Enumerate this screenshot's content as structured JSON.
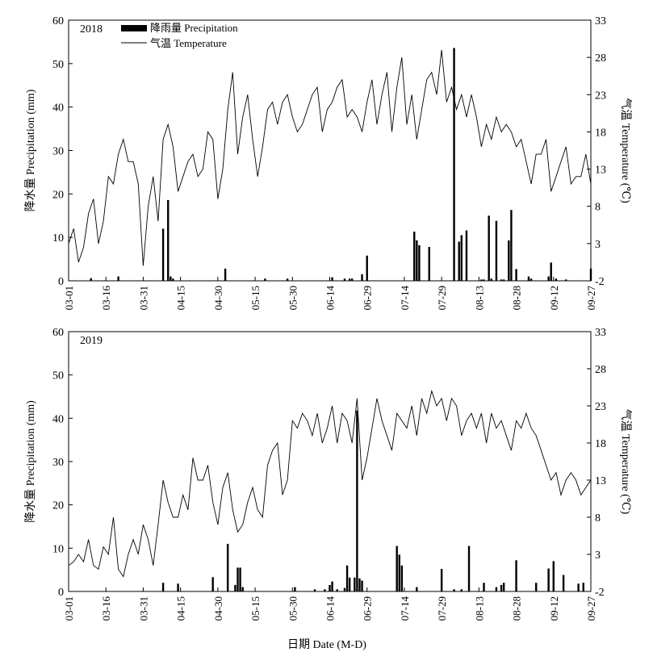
{
  "legend": {
    "precip_label": "降雨量 Precipitation",
    "temp_label": "气温 Temperature"
  },
  "shared_xlabel": "日期 Date (M-D)",
  "chart_data": [
    {
      "type": "bar+line",
      "panel_label": "2018",
      "x_tick_labels": [
        "03-01",
        "03-16",
        "03-31",
        "04-15",
        "04-30",
        "05-15",
        "05-30",
        "06-14",
        "06-29",
        "07-14",
        "07-29",
        "08-13",
        "08-28",
        "09-12",
        "09-27"
      ],
      "x_tick_days": [
        0,
        15,
        30,
        45,
        60,
        75,
        90,
        105,
        120,
        135,
        150,
        165,
        180,
        195,
        210
      ],
      "ylabel_left": "降水量 Precipitation (mm)",
      "ylabel_right": "气温 Temperature (℃)",
      "ylim_left": [
        0,
        60
      ],
      "yticks_left": [
        0,
        10,
        20,
        30,
        40,
        50,
        60
      ],
      "ylim_right": [
        -2,
        33
      ],
      "yticks_right": [
        -2,
        3,
        8,
        13,
        18,
        23,
        28,
        33
      ],
      "precipitation": {
        "name": "降雨量 Precipitation",
        "days": [
          9,
          20,
          38,
          40,
          41,
          42,
          63,
          79,
          88,
          106,
          111,
          113,
          114,
          118,
          120,
          139,
          140,
          141,
          145,
          155,
          157,
          158,
          160,
          166,
          167,
          169,
          170,
          172,
          174,
          175,
          177,
          178,
          180,
          185,
          185,
          186,
          193,
          194,
          196,
          200,
          210
        ],
        "values": [
          0.6,
          1.0,
          12.0,
          18.6,
          1.0,
          0.5,
          2.8,
          0.5,
          0.5,
          0.8,
          0.5,
          0.5,
          0.5,
          1.5,
          5.8,
          11.3,
          9.3,
          8.2,
          7.8,
          53.6,
          9.0,
          10.5,
          11.6,
          0.3,
          0.3,
          15.0,
          0.5,
          13.8,
          0.3,
          0.3,
          9.3,
          16.3,
          2.7,
          0.3,
          1.0,
          0.5,
          1.0,
          4.2,
          0.5,
          0.3,
          2.8
        ]
      },
      "temperature": {
        "name": "气温 Temperature",
        "days": [
          0,
          2,
          4,
          6,
          8,
          10,
          12,
          14,
          16,
          18,
          20,
          22,
          24,
          26,
          28,
          30,
          32,
          34,
          36,
          38,
          40,
          42,
          44,
          46,
          48,
          50,
          52,
          54,
          56,
          58,
          60,
          62,
          64,
          66,
          68,
          70,
          72,
          74,
          76,
          78,
          80,
          82,
          84,
          86,
          88,
          90,
          92,
          94,
          96,
          98,
          100,
          102,
          104,
          106,
          108,
          110,
          112,
          114,
          116,
          118,
          120,
          122,
          124,
          126,
          128,
          130,
          132,
          134,
          136,
          138,
          140,
          142,
          144,
          146,
          148,
          150,
          152,
          154,
          156,
          158,
          160,
          162,
          164,
          166,
          168,
          170,
          172,
          174,
          176,
          178,
          180,
          182,
          184,
          186,
          188,
          190,
          192,
          194,
          196,
          198,
          200,
          202,
          204,
          206,
          208,
          210
        ],
        "values": [
          3,
          5,
          0.5,
          2.5,
          7,
          9,
          3,
          6,
          12,
          11,
          15,
          17,
          14,
          14,
          11,
          0,
          8,
          12,
          6,
          17,
          19,
          16,
          10,
          12,
          14,
          15,
          12,
          13,
          18,
          17,
          9,
          13,
          21,
          26,
          15,
          20,
          23,
          17,
          12,
          16,
          21,
          22,
          19,
          22,
          23,
          20,
          18,
          19,
          21,
          23,
          24,
          18,
          21,
          22,
          24,
          25,
          20,
          21,
          20,
          18,
          22,
          25,
          19,
          23,
          26,
          18,
          24,
          28,
          19,
          23,
          17,
          21,
          25,
          26,
          23,
          29,
          22,
          24,
          21,
          23,
          20,
          23,
          20,
          16,
          19,
          17,
          20,
          18,
          19,
          18,
          16,
          17,
          14,
          11,
          15,
          15,
          17,
          10,
          12,
          14,
          16,
          11,
          12,
          12,
          15,
          11
        ]
      }
    },
    {
      "type": "bar+line",
      "panel_label": "2019",
      "x_tick_labels": [
        "03-01",
        "03-16",
        "03-31",
        "04-15",
        "04-30",
        "05-15",
        "05-30",
        "06-14",
        "06-29",
        "07-14",
        "07-29",
        "08-13",
        "08-28",
        "09-12",
        "09-27"
      ],
      "x_tick_days": [
        0,
        15,
        30,
        45,
        60,
        75,
        90,
        105,
        120,
        135,
        150,
        165,
        180,
        195,
        210
      ],
      "ylabel_left": "降水量 Precipitation (mm)",
      "ylabel_right": "气温 Temperature (℃)",
      "ylim_left": [
        0,
        60
      ],
      "yticks_left": [
        0,
        10,
        20,
        30,
        40,
        50,
        60
      ],
      "ylim_right": [
        -2,
        33
      ],
      "yticks_right": [
        -2,
        3,
        8,
        13,
        18,
        23,
        28,
        33
      ],
      "precipitation": {
        "name": "降雨量 Precipitation",
        "days": [
          38,
          44,
          58,
          64,
          67,
          68,
          69,
          70,
          91,
          99,
          103,
          105,
          106,
          108,
          111,
          112,
          113,
          115,
          116,
          117,
          118,
          132,
          133,
          134,
          140,
          150,
          155,
          158,
          161,
          167,
          172,
          174,
          175,
          180,
          188,
          193,
          195,
          199,
          205,
          207
        ],
        "values": [
          2.0,
          1.8,
          3.3,
          11.0,
          1.5,
          5.5,
          5.5,
          1.0,
          1.0,
          0.5,
          0.5,
          1.5,
          2.3,
          0.5,
          0.8,
          6.0,
          3.2,
          3.2,
          41.8,
          3.0,
          2.5,
          10.5,
          8.5,
          6.0,
          1.0,
          5.2,
          0.5,
          0.5,
          10.5,
          2.0,
          1.0,
          1.5,
          2.0,
          7.2,
          2.0,
          5.3,
          7.0,
          3.8,
          1.8,
          2.0
        ]
      },
      "temperature": {
        "name": "气温 Temperature",
        "days": [
          0,
          2,
          4,
          6,
          8,
          10,
          12,
          14,
          16,
          18,
          20,
          22,
          24,
          26,
          28,
          30,
          32,
          34,
          36,
          38,
          40,
          42,
          44,
          46,
          48,
          50,
          52,
          54,
          56,
          58,
          60,
          62,
          64,
          66,
          68,
          70,
          72,
          74,
          76,
          78,
          80,
          82,
          84,
          86,
          88,
          90,
          92,
          94,
          96,
          98,
          100,
          102,
          104,
          106,
          108,
          110,
          112,
          114,
          116,
          118,
          120,
          122,
          124,
          126,
          128,
          130,
          132,
          134,
          136,
          138,
          140,
          142,
          144,
          146,
          148,
          150,
          152,
          154,
          156,
          158,
          160,
          162,
          164,
          166,
          168,
          170,
          172,
          174,
          176,
          178,
          180,
          182,
          184,
          186,
          188,
          190,
          192,
          194,
          196,
          198,
          200,
          202,
          204,
          206,
          208,
          210
        ],
        "values": [
          1.5,
          2,
          3,
          2,
          5,
          1.5,
          1,
          4,
          3,
          8,
          1,
          0,
          3,
          5,
          3,
          7,
          5,
          1.5,
          7,
          13,
          10,
          8,
          8,
          11,
          9,
          16,
          13,
          13,
          15,
          10,
          7,
          12,
          14,
          9,
          6,
          7,
          10,
          12,
          9,
          8,
          15,
          17,
          18,
          11,
          13,
          21,
          20,
          22,
          21,
          19,
          22,
          18,
          20,
          23,
          18,
          22,
          21,
          18,
          24,
          13,
          16,
          20,
          24,
          21,
          19,
          17,
          22,
          21,
          20,
          23,
          19,
          24,
          22,
          25,
          23,
          24,
          21,
          24,
          23,
          19,
          21,
          22,
          20,
          22,
          18,
          22,
          20,
          21,
          19,
          17,
          21,
          20,
          22,
          20,
          19,
          17,
          15,
          13,
          14,
          11,
          13,
          14,
          13,
          11,
          12,
          13
        ]
      }
    }
  ]
}
